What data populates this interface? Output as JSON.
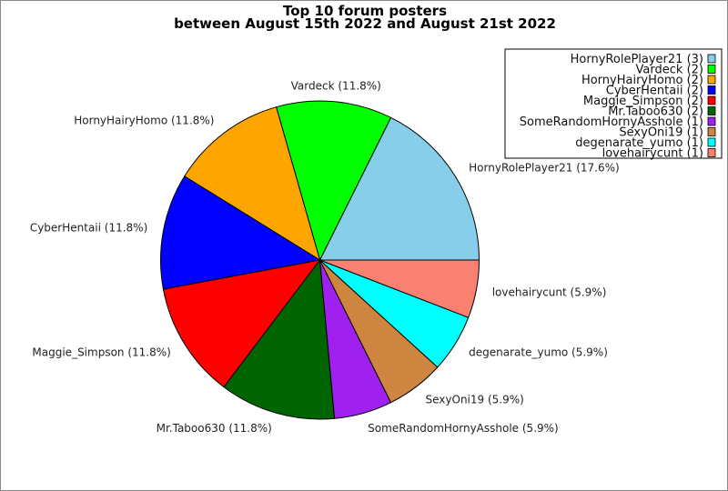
{
  "chart_data": {
    "type": "pie",
    "title": [
      "Top 10 forum posters",
      "between August 15th 2022 and August 21st 2022"
    ],
    "legend_placement": "top-right",
    "start_angle_deg": 0,
    "direction": "counterclockwise",
    "slices": [
      {
        "name": "HornyRolePlayer21",
        "value": 3,
        "label": "HornyRolePlayer21 (17.6%)",
        "legend": "HornyRolePlayer21 (3)",
        "color": "#87ceeb"
      },
      {
        "name": "Vardeck",
        "value": 2,
        "label": "Vardeck (11.8%)",
        "legend": "Vardeck (2)",
        "color": "#00ff00"
      },
      {
        "name": "HornyHairyHomo",
        "value": 2,
        "label": "HornyHairyHomo (11.8%)",
        "legend": "HornyHairyHomo (2)",
        "color": "#ffa500"
      },
      {
        "name": "CyberHentaii",
        "value": 2,
        "label": "CyberHentaii (11.8%)",
        "legend": "CyberHentaii (2)",
        "color": "#0000ff"
      },
      {
        "name": "Maggie_Simpson",
        "value": 2,
        "label": "Maggie_Simpson (11.8%)",
        "legend": "Maggie_Simpson (2)",
        "color": "#ff0000"
      },
      {
        "name": "Mr.Taboo630",
        "value": 2,
        "label": "Mr.Taboo630 (11.8%)",
        "legend": "Mr.Taboo630 (2)",
        "color": "#006400"
      },
      {
        "name": "SomeRandomHornyAsshole",
        "value": 1,
        "label": "SomeRandomHornyAsshole (5.9%)",
        "legend": "SomeRandomHornyAsshole (1)",
        "color": "#a020f0"
      },
      {
        "name": "SexyOni19",
        "value": 1,
        "label": "SexyOni19 (5.9%)",
        "legend": "SexyOni19 (1)",
        "color": "#cd853f"
      },
      {
        "name": "degenarate_yumo",
        "value": 1,
        "label": "degenarate_yumo (5.9%)",
        "legend": "degenarate_yumo (1)",
        "color": "#00ffff"
      },
      {
        "name": "lovehairycunt",
        "value": 1,
        "label": "lovehairycunt (5.9%)",
        "legend": "lovehairycunt (1)",
        "color": "#fa8072"
      }
    ]
  }
}
